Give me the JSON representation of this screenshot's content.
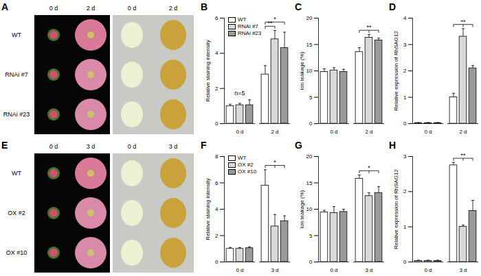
{
  "photo_panels": [
    {
      "panel": "A",
      "columns": [
        "0 d",
        "2 d",
        "0 d",
        "2 d"
      ],
      "rows": [
        "WT",
        "RNAi #7",
        "RNAi #23"
      ]
    },
    {
      "panel": "E",
      "columns": [
        "0 d",
        "3 d",
        "0 d",
        "3 d"
      ],
      "rows": [
        "WT",
        "OX #2",
        "OX #10"
      ]
    }
  ],
  "chart_data": [
    {
      "panel": "B",
      "type": "bar",
      "ylabel": "Relative staining intensity",
      "categories": [
        "0 d",
        "2 d"
      ],
      "ylim": [
        0,
        6
      ],
      "yticks": [
        0,
        2,
        4,
        6
      ],
      "legend": "top left",
      "series": [
        {
          "name": "WT",
          "color": "#ffffff",
          "values": [
            1.0,
            2.8
          ],
          "errors": [
            0.1,
            0.5
          ]
        },
        {
          "name": "RNAi #7",
          "color": "#d9d9d9",
          "values": [
            1.05,
            4.8
          ],
          "errors": [
            0.1,
            0.5
          ]
        },
        {
          "name": "RNAi #23",
          "color": "#9a9a9a",
          "values": [
            1.05,
            4.3
          ],
          "errors": [
            0.3,
            0.9
          ]
        }
      ],
      "annotations": [
        {
          "text": "**",
          "category": "2 d",
          "series": [
            "WT",
            "RNAi #7"
          ]
        },
        {
          "text": "*",
          "category": "2 d",
          "series": [
            "WT",
            "RNAi #23"
          ]
        },
        {
          "text": "n=5",
          "category": "0 d"
        }
      ]
    },
    {
      "panel": "C",
      "type": "bar",
      "ylabel": "Ion leakage (%)",
      "categories": [
        "0 d",
        "2 d"
      ],
      "ylim": [
        0,
        20
      ],
      "yticks": [
        0,
        5,
        10,
        15,
        20
      ],
      "series": [
        {
          "name": "WT",
          "color": "#ffffff",
          "values": [
            9.8,
            13.6
          ],
          "errors": [
            0.6,
            0.8
          ]
        },
        {
          "name": "RNAi #7",
          "color": "#d9d9d9",
          "values": [
            10.1,
            16.3
          ],
          "errors": [
            0.5,
            0.6
          ]
        },
        {
          "name": "RNAi #23",
          "color": "#9a9a9a",
          "values": [
            9.8,
            15.8
          ],
          "errors": [
            0.5,
            0.4
          ]
        }
      ],
      "annotations": [
        {
          "text": "**",
          "category": "2 d",
          "series": [
            "WT",
            "RNAi #7",
            "RNAi #23"
          ]
        }
      ]
    },
    {
      "panel": "D",
      "type": "bar",
      "ylabel": "Relative expression of RhSAG12",
      "categories": [
        "0 d",
        "2 d"
      ],
      "ylim": [
        0,
        4
      ],
      "yticks": [
        0,
        1,
        2,
        3,
        4
      ],
      "series": [
        {
          "name": "WT",
          "color": "#ffffff",
          "values": [
            0.02,
            1.0
          ],
          "errors": [
            0.02,
            0.15
          ]
        },
        {
          "name": "RNAi #7",
          "color": "#d9d9d9",
          "values": [
            0.02,
            3.3
          ],
          "errors": [
            0.02,
            0.3
          ]
        },
        {
          "name": "RNAi #23",
          "color": "#9a9a9a",
          "values": [
            0.02,
            2.1
          ],
          "errors": [
            0.02,
            0.1
          ]
        }
      ],
      "annotations": [
        {
          "text": "**",
          "category": "2 d",
          "series": [
            "WT",
            "RNAi #7",
            "RNAi #23"
          ]
        }
      ]
    },
    {
      "panel": "F",
      "type": "bar",
      "ylabel": "Relative staining intensity",
      "categories": [
        "0 d",
        "3 d"
      ],
      "ylim": [
        0,
        8
      ],
      "yticks": [
        0,
        2,
        4,
        6,
        8
      ],
      "legend": "top left",
      "series": [
        {
          "name": "WT",
          "color": "#ffffff",
          "values": [
            1.0,
            5.8
          ],
          "errors": [
            0.1,
            1.2
          ]
        },
        {
          "name": "OX #2",
          "color": "#d9d9d9",
          "values": [
            1.0,
            2.7
          ],
          "errors": [
            0.1,
            0.9
          ]
        },
        {
          "name": "OX #10",
          "color": "#9a9a9a",
          "values": [
            1.05,
            3.1
          ],
          "errors": [
            0.1,
            0.4
          ]
        }
      ],
      "annotations": [
        {
          "text": "*",
          "category": "3 d",
          "series": [
            "WT",
            "OX #2",
            "OX #10"
          ]
        }
      ]
    },
    {
      "panel": "G",
      "type": "bar",
      "ylabel": "Ion leakage (%)",
      "categories": [
        "0 d",
        "3 d"
      ],
      "ylim": [
        0,
        20
      ],
      "yticks": [
        0,
        5,
        10,
        15,
        20
      ],
      "series": [
        {
          "name": "WT",
          "color": "#ffffff",
          "values": [
            9.4,
            15.8
          ],
          "errors": [
            0.4,
            0.7
          ]
        },
        {
          "name": "OX #2",
          "color": "#d9d9d9",
          "values": [
            9.3,
            12.5
          ],
          "errors": [
            1.2,
            0.6
          ]
        },
        {
          "name": "OX #10",
          "color": "#9a9a9a",
          "values": [
            9.5,
            13.1
          ],
          "errors": [
            0.5,
            1.2
          ]
        }
      ],
      "annotations": [
        {
          "text": "*",
          "category": "3 d",
          "series": [
            "WT",
            "OX #2",
            "OX #10"
          ]
        }
      ]
    },
    {
      "panel": "H",
      "type": "bar",
      "ylabel": "Relative expression of RhSAG12",
      "categories": [
        "0 d",
        "3 d"
      ],
      "ylim": [
        0,
        3
      ],
      "yticks": [
        0,
        1,
        2,
        3
      ],
      "series": [
        {
          "name": "WT",
          "color": "#ffffff",
          "values": [
            0.03,
            2.75
          ],
          "errors": [
            0.02,
            0.08
          ]
        },
        {
          "name": "OX #2",
          "color": "#d9d9d9",
          "values": [
            0.03,
            1.0
          ],
          "errors": [
            0.02,
            0.05
          ]
        },
        {
          "name": "OX #10",
          "color": "#9a9a9a",
          "values": [
            0.03,
            1.45
          ],
          "errors": [
            0.02,
            0.3
          ]
        }
      ],
      "annotations": [
        {
          "text": "**",
          "category": "3 d",
          "series": [
            "WT",
            "OX #2",
            "OX #10"
          ]
        }
      ]
    }
  ]
}
